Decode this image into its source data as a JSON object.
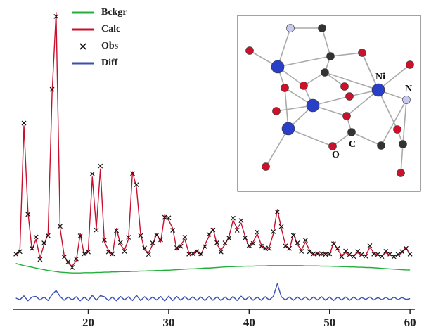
{
  "chart_data": {
    "type": "line",
    "x": [
      11,
      11.5,
      12,
      12.5,
      13,
      13.5,
      14,
      14.5,
      15,
      15.5,
      16,
      16.5,
      17,
      17.5,
      18,
      18.5,
      19,
      19.5,
      20,
      20.5,
      21,
      21.5,
      22,
      22.5,
      23,
      23.5,
      24,
      24.5,
      25,
      25.5,
      26,
      26.5,
      27,
      27.5,
      28,
      28.5,
      29,
      29.5,
      30,
      30.5,
      31,
      31.5,
      32,
      32.5,
      33,
      33.5,
      34,
      34.5,
      35,
      35.5,
      36,
      36.5,
      37,
      37.5,
      38,
      38.5,
      39,
      39.5,
      40,
      40.5,
      41,
      41.5,
      42,
      42.5,
      43,
      43.5,
      44,
      44.5,
      45,
      45.5,
      46,
      46.5,
      47,
      47.5,
      48,
      48.5,
      49,
      49.5,
      50,
      50.5,
      51,
      51.5,
      52,
      52.5,
      53,
      53.5,
      54,
      54.5,
      55,
      55.5,
      56,
      56.5,
      57,
      57.5,
      58,
      58.5,
      59,
      59.5,
      60
    ],
    "series": [
      {
        "name": "Bckgr",
        "color": "#22b03a",
        "mode": "line",
        "values": [
          17.0,
          16.6,
          16.2,
          15.9,
          15.6,
          15.3,
          15.0,
          14.7,
          14.4,
          14.2,
          14.0,
          13.8,
          13.7,
          13.6,
          13.5,
          13.5,
          13.5,
          13.6,
          13.6,
          13.6,
          13.7,
          13.7,
          13.8,
          13.8,
          13.9,
          13.9,
          14.0,
          14.0,
          14.0,
          14.1,
          14.1,
          14.2,
          14.2,
          14.3,
          14.3,
          14.4,
          14.4,
          14.5,
          14.5,
          14.6,
          14.7,
          14.8,
          14.9,
          15.0,
          15.0,
          15.1,
          15.2,
          15.3,
          15.3,
          15.4,
          15.5,
          15.6,
          15.7,
          15.8,
          15.8,
          15.9,
          15.9,
          16.0,
          16.0,
          16.0,
          16.1,
          16.1,
          16.1,
          16.2,
          16.2,
          16.2,
          16.2,
          16.2,
          16.2,
          16.2,
          16.2,
          16.2,
          16.1,
          16.1,
          16.1,
          16.1,
          16.0,
          16.0,
          16.0,
          15.9,
          15.9,
          15.8,
          15.8,
          15.7,
          15.7,
          15.6,
          15.6,
          15.5,
          15.5,
          15.4,
          15.3,
          15.2,
          15.1,
          15.0,
          14.9,
          14.8,
          14.7,
          14.6,
          14.6
        ]
      },
      {
        "name": "Calc",
        "color": "#c8102e",
        "mode": "line",
        "values": [
          20,
          22,
          68,
          36,
          22,
          26,
          19,
          24,
          28,
          80,
          110,
          30,
          20,
          17,
          16,
          18,
          28,
          20,
          22,
          49,
          30,
          52,
          25,
          22,
          20,
          30,
          24,
          22,
          26,
          51,
          45,
          28,
          22,
          21,
          24,
          28,
          25,
          35,
          33,
          30,
          22,
          24,
          26,
          21,
          20,
          22,
          20,
          24,
          27,
          30,
          24,
          22,
          24,
          27,
          33,
          30,
          32,
          27,
          23,
          25,
          28,
          24,
          22,
          23,
          28,
          37,
          30,
          24,
          22,
          28,
          24,
          22,
          25,
          22,
          20,
          21,
          20,
          21,
          20,
          25,
          22,
          20,
          21,
          20,
          20,
          21,
          20,
          20,
          23,
          21,
          20,
          20,
          21,
          20,
          20,
          20,
          21,
          23,
          20
        ]
      },
      {
        "name": "Obs",
        "color": "#111111",
        "mode": "markers",
        "values": [
          20.5,
          21.4,
          69,
          35.2,
          22.6,
          26.8,
          18.5,
          24.6,
          27.3,
          81.5,
          108.5,
          30.8,
          19.4,
          17.6,
          15.5,
          18.7,
          27.2,
          20.6,
          21.3,
          50.2,
          29.4,
          53.1,
          25.7,
          21.3,
          20.6,
          29.2,
          24.8,
          21.5,
          26.7,
          50.3,
          46.2,
          27.3,
          22.7,
          20.4,
          24.6,
          27.5,
          25.8,
          34.1,
          33.9,
          29.3,
          22.8,
          23.4,
          26.7,
          20.5,
          20.7,
          21.4,
          20.6,
          23.3,
          27.8,
          29.4,
          24.7,
          21.3,
          24.6,
          26.4,
          33.8,
          29.3,
          32.9,
          26.5,
          23.7,
          24.4,
          28.6,
          23.4,
          22.7,
          22.5,
          28.8,
          36.1,
          30.7,
          23.5,
          22.6,
          27.4,
          24.6,
          21.5,
          25.6,
          21.4,
          20.6,
          20.5,
          20.7,
          20.4,
          20.6,
          24.3,
          22.6,
          19.5,
          21.6,
          20.4,
          19.6,
          21.5,
          20.4,
          19.7,
          23.6,
          20.5,
          20.4,
          19.6,
          21.5,
          20.5,
          19.5,
          20.4,
          21.4,
          22.6,
          20.5
        ]
      },
      {
        "name": "Diff",
        "color": "#3a4fb0",
        "mode": "line",
        "values": [
          4.2,
          3.6,
          5.0,
          3.2,
          4.6,
          4.8,
          3.5,
          4.6,
          3.3,
          5.5,
          7.0,
          4.8,
          3.4,
          4.6,
          3.5,
          4.7,
          3.2,
          4.6,
          3.3,
          5.2,
          3.4,
          5.1,
          4.7,
          3.3,
          4.6,
          3.2,
          4.8,
          3.5,
          4.7,
          3.3,
          5.2,
          3.3,
          4.7,
          3.4,
          4.6,
          3.5,
          4.8,
          3.1,
          4.9,
          3.3,
          4.8,
          3.4,
          4.7,
          3.5,
          4.7,
          3.4,
          4.6,
          3.3,
          4.8,
          3.4,
          4.7,
          3.3,
          4.6,
          3.4,
          4.8,
          3.3,
          4.9,
          3.5,
          4.7,
          3.4,
          4.6,
          3.4,
          4.7,
          3.5,
          4.8,
          9.5,
          4.7,
          3.5,
          4.6,
          3.4,
          4.6,
          3.5,
          4.6,
          3.4,
          4.6,
          3.5,
          4.7,
          3.4,
          4.6,
          3.3,
          4.6,
          3.5,
          4.6,
          3.4,
          4.6,
          3.5,
          4.4,
          3.7,
          4.6,
          3.5,
          4.4,
          3.6,
          4.5,
          3.5,
          4.6,
          3.6,
          4.4,
          3.7,
          4.0
        ]
      }
    ],
    "xlim": [
      10.6,
      60.6
    ],
    "xticks": [
      20,
      30,
      40,
      50,
      60
    ],
    "ylim": [
      0,
      112
    ],
    "grid": false,
    "legend": "upper left"
  },
  "inset": {
    "atom_labels": [
      "Ni",
      "N",
      "O",
      "C"
    ]
  }
}
